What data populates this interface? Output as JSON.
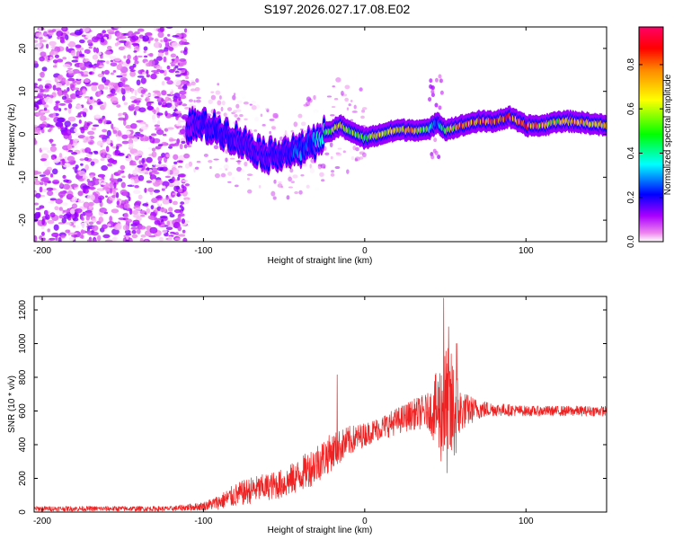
{
  "title": "S197.2026.027.17.08.E02",
  "chart_data": [
    {
      "type": "heatmap",
      "xlabel": "Height of straight line (km)",
      "ylabel": "Frequency (Hz)",
      "xlim": [
        -205,
        150
      ],
      "ylim": [
        -25,
        25
      ],
      "xticks": [
        -200,
        -100,
        0,
        100
      ],
      "yticks": [
        -20,
        -10,
        0,
        10,
        20
      ],
      "colorbar": {
        "label": "Normalized spectral amplitude",
        "ticks": [
          0.0,
          0.2,
          0.4,
          0.6,
          0.8
        ],
        "range": [
          0,
          0.97
        ]
      },
      "noise_region": {
        "x": [
          -205,
          -110
        ],
        "y": [
          -25,
          25
        ],
        "amplitude_max": 0.15
      },
      "ridge": {
        "description": "dominant frequency track",
        "x": [
          -110,
          -100,
          -90,
          -80,
          -70,
          -60,
          -50,
          -40,
          -35,
          -30,
          -25,
          -20,
          -15,
          -10,
          -5,
          0,
          10,
          20,
          30,
          40,
          45,
          50,
          60,
          70,
          80,
          90,
          100,
          110,
          120,
          130,
          150
        ],
        "y": [
          2,
          2,
          1,
          -1,
          -3,
          -5,
          -4,
          -4,
          -2,
          -2,
          0,
          1,
          2,
          1,
          0,
          -1,
          0,
          1,
          1,
          1,
          3,
          1,
          2,
          3,
          3,
          4,
          2,
          2,
          3,
          3,
          2
        ],
        "amplitude": [
          0.15,
          0.2,
          0.2,
          0.18,
          0.17,
          0.17,
          0.2,
          0.3,
          0.25,
          0.35,
          0.45,
          0.7,
          0.8,
          0.6,
          0.6,
          0.5,
          0.75,
          0.7,
          0.8,
          0.5,
          0.2,
          0.6,
          0.85,
          0.8,
          0.95,
          0.9,
          0.9,
          0.75,
          0.65,
          0.8,
          0.7
        ]
      }
    },
    {
      "type": "line",
      "xlabel": "Height of straight line (km)",
      "ylabel": "SNR (10 * v/v)",
      "xlim": [
        -205,
        150
      ],
      "ylim": [
        0,
        1280
      ],
      "xticks": [
        -200,
        -100,
        0,
        100
      ],
      "yticks": [
        0,
        200,
        400,
        600,
        800,
        1000,
        1200
      ],
      "color": "#ee2222",
      "envelope": {
        "x": [
          -205,
          -120,
          -100,
          -90,
          -80,
          -70,
          -60,
          -50,
          -40,
          -30,
          -20,
          -10,
          0,
          10,
          20,
          30,
          40,
          45,
          50,
          55,
          60,
          70,
          80,
          100,
          120,
          150
        ],
        "mean": [
          20,
          20,
          35,
          60,
          100,
          130,
          150,
          170,
          220,
          290,
          360,
          420,
          460,
          500,
          540,
          580,
          600,
          600,
          600,
          590,
          600,
          610,
          610,
          600,
          600,
          600
        ],
        "spread": [
          15,
          15,
          25,
          45,
          70,
          80,
          80,
          90,
          100,
          120,
          110,
          90,
          70,
          70,
          80,
          90,
          110,
          250,
          400,
          350,
          120,
          60,
          40,
          30,
          30,
          30
        ]
      },
      "spikes": [
        {
          "x": -17,
          "y": 815
        },
        {
          "x": 49,
          "y": 1270
        },
        {
          "x": 52,
          "y": 1100
        },
        {
          "x": 57,
          "y": 1000
        }
      ]
    }
  ]
}
